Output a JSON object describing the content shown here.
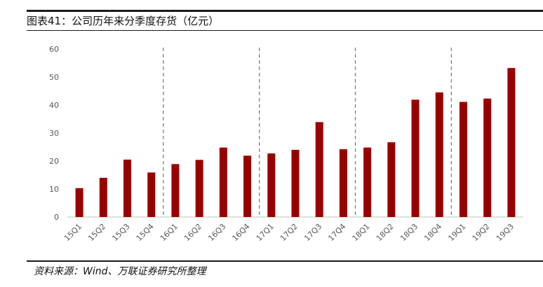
{
  "title": "图表41：公司历年来分季度存货（亿元）",
  "source": "资料来源：Wind、万联证券研究所整理",
  "colors": {
    "bar": "#990000",
    "axis": "#bfbfbf",
    "divider": "#808080",
    "tick_text": "#595959"
  },
  "chart_data": {
    "type": "bar",
    "title": "",
    "xlabel": "",
    "ylabel": "",
    "ylim": [
      0,
      60
    ],
    "yticks": [
      "0",
      "10",
      "20",
      "30",
      "40",
      "50",
      "60"
    ],
    "grid": false,
    "legend": "none",
    "categories": [
      "15Q1",
      "15Q2",
      "15Q3",
      "15Q4",
      "16Q1",
      "16Q2",
      "16Q3",
      "16Q4",
      "17Q1",
      "17Q2",
      "17Q3",
      "17Q4",
      "18Q1",
      "18Q2",
      "18Q3",
      "18Q4",
      "19Q1",
      "19Q2",
      "19Q3"
    ],
    "values": [
      10.3,
      14.0,
      20.5,
      15.9,
      18.9,
      20.4,
      24.8,
      21.9,
      22.7,
      24.0,
      33.9,
      24.2,
      24.8,
      26.7,
      41.9,
      44.5,
      41.1,
      42.3,
      53.2
    ],
    "group_dividers_after": [
      "15Q4",
      "16Q4",
      "17Q4",
      "18Q4"
    ]
  }
}
